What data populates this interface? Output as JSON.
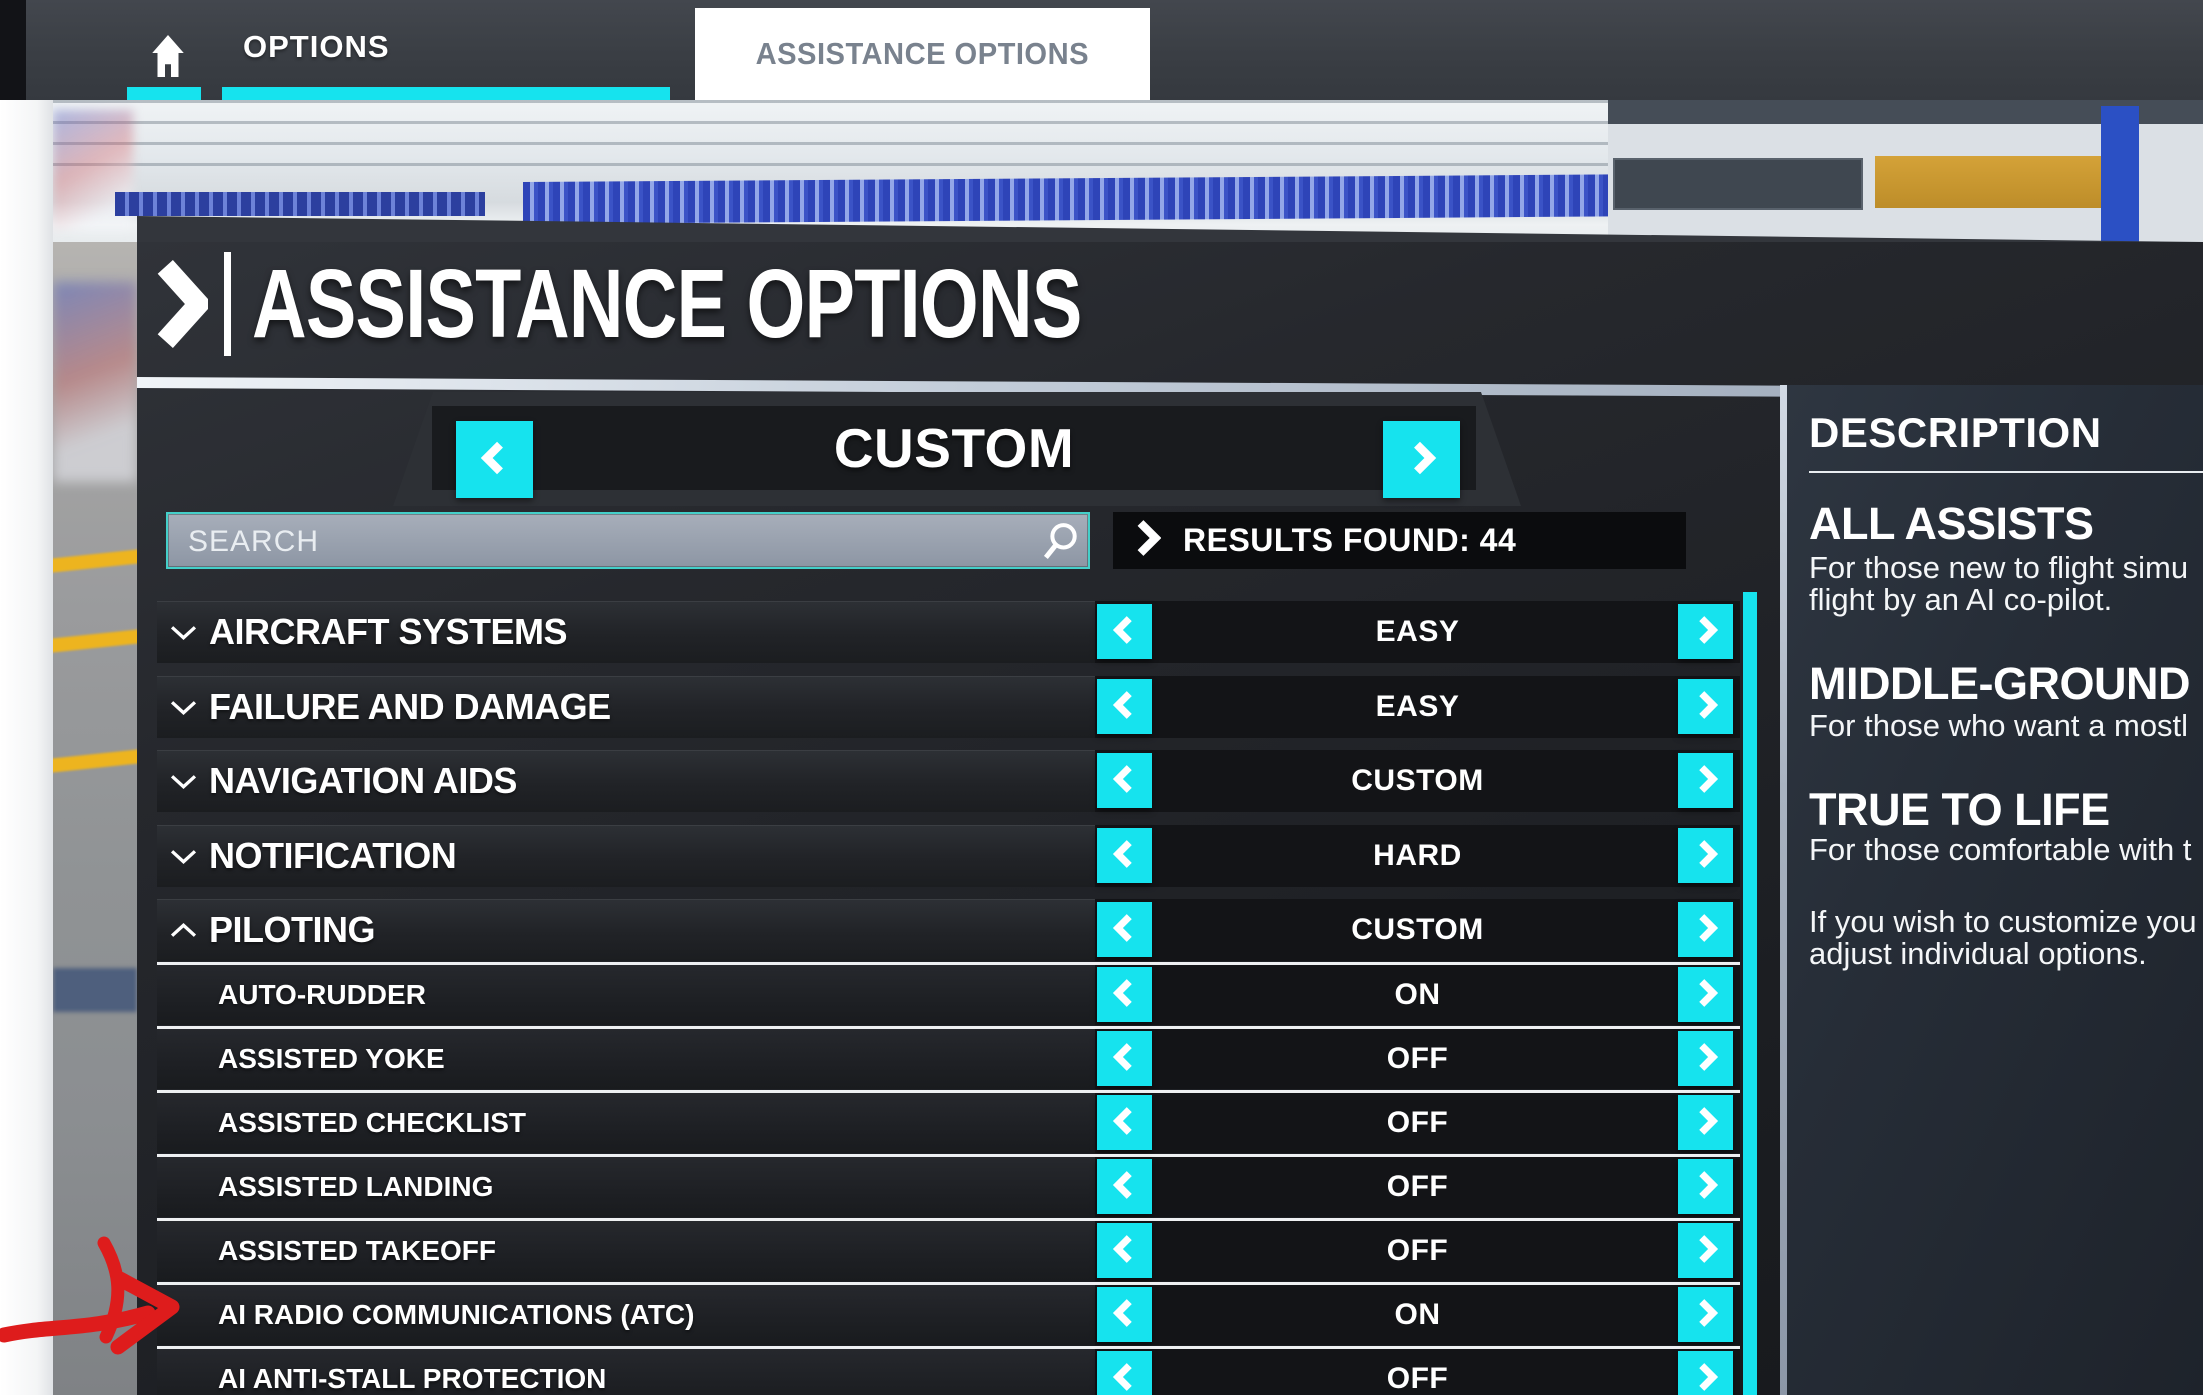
{
  "colors": {
    "accent_cyan": "#16e3ee",
    "annotation_red": "#de1c1c",
    "active_tab_bg": "#ffffff"
  },
  "header": {
    "home_icon": "home-icon",
    "options_tab": "OPTIONS",
    "assistance_tab": "ASSISTANCE OPTIONS"
  },
  "page": {
    "title": "ASSISTANCE OPTIONS",
    "title_chevron_icon": "chevron-right-icon",
    "preset_value": "CUSTOM",
    "search_placeholder": "SEARCH",
    "search_icon": "search-icon",
    "results_label": "RESULTS FOUND: 44"
  },
  "rows": [
    {
      "label": "AIRCRAFT SYSTEMS",
      "value": "EASY",
      "kind": "category",
      "state": "collapsed"
    },
    {
      "label": "FAILURE AND DAMAGE",
      "value": "EASY",
      "kind": "category",
      "state": "collapsed"
    },
    {
      "label": "NAVIGATION AIDS",
      "value": "CUSTOM",
      "kind": "category",
      "state": "collapsed"
    },
    {
      "label": "NOTIFICATION",
      "value": "HARD",
      "kind": "category",
      "state": "collapsed"
    },
    {
      "label": "PILOTING",
      "value": "CUSTOM",
      "kind": "category",
      "state": "expanded"
    },
    {
      "label": "AUTO-RUDDER",
      "value": "ON",
      "kind": "sub"
    },
    {
      "label": "ASSISTED YOKE",
      "value": "OFF",
      "kind": "sub"
    },
    {
      "label": "ASSISTED CHECKLIST",
      "value": "OFF",
      "kind": "sub"
    },
    {
      "label": "ASSISTED LANDING",
      "value": "OFF",
      "kind": "sub"
    },
    {
      "label": "ASSISTED TAKEOFF",
      "value": "OFF",
      "kind": "sub"
    },
    {
      "label": "AI RADIO COMMUNICATIONS (ATC)",
      "value": "ON",
      "kind": "sub"
    },
    {
      "label": "AI ANTI-STALL PROTECTION",
      "value": "OFF",
      "kind": "sub"
    }
  ],
  "description": {
    "title": "DESCRIPTION",
    "sections": [
      {
        "heading": "ALL ASSISTS",
        "lines": [
          "For those new to flight simu",
          "flight by an AI co-pilot."
        ]
      },
      {
        "heading": "MIDDLE-GROUND",
        "lines": [
          "For those who want a mostl"
        ]
      },
      {
        "heading": "TRUE TO LIFE",
        "lines": [
          "For those comfortable with t"
        ]
      }
    ],
    "footer_lines": [
      "If you wish to customize you",
      "adjust individual options."
    ]
  },
  "annotation": {
    "shape": "hand-drawn-arrow",
    "color": "#de1c1c",
    "points_to": "AI RADIO COMMUNICATIONS (ATC)"
  }
}
